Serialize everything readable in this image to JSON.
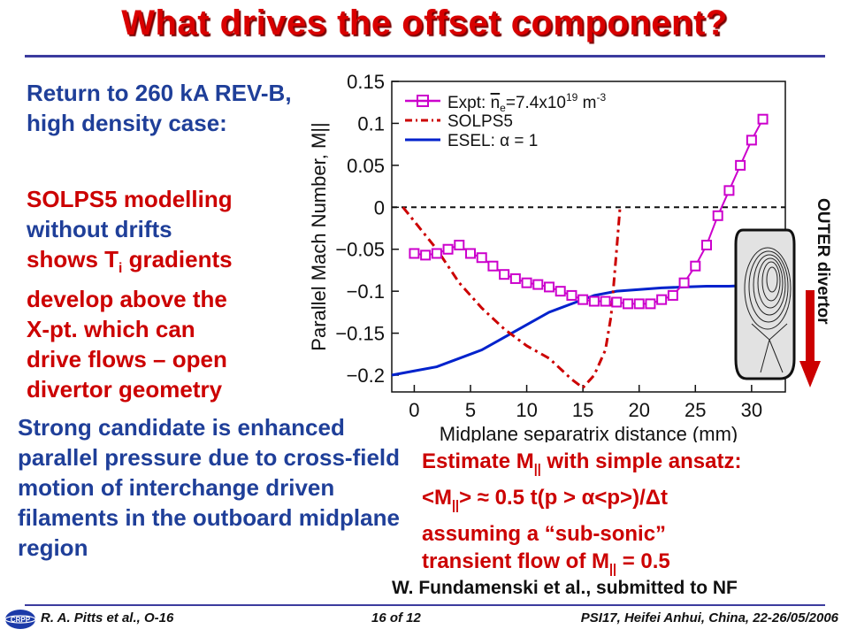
{
  "slide": {
    "title": "What drives the offset component?",
    "p1": "Return to 260 kA REV-B, high density case:",
    "p2": {
      "a": "SOLPS5 modelling",
      "b": "without drifts",
      "c_pre": "shows T",
      "c_sub": "i",
      "c_post": " gradients",
      "d": "develop above the",
      "e": "X-pt. which can",
      "f": "drive flows – open",
      "g": "divertor geometry"
    },
    "p3": "Strong candidate is enhanced parallel pressure due to cross-field motion of interchange driven filaments in the outboard midplane region",
    "ansatz": {
      "l1_pre": "Estimate M",
      "l1_sub": "||",
      "l1_post": " with simple ansatz:",
      "l2_a": "<M",
      "l2_sub": "||",
      "l2_b": "> ≈ 0.5 t(p > α<p>)/Δt",
      "l3": "assuming a “sub-sonic”",
      "l4_pre": "transient flow of  M",
      "l4_sub": "||",
      "l4_post": " = 0.5"
    },
    "reference": "W. Fundamenski et al., submitted to NF",
    "outer_divertor": "OUTER divertor",
    "footer": {
      "left": "R. A. Pitts et al., O-16",
      "center": "16 of 12",
      "right": "PSI17, Heifei Anhui, China, 22-26/05/2006"
    },
    "logo_text": "CRPP"
  },
  "colors": {
    "title": "#d90000",
    "blue_text": "#1f3f99",
    "red_text": "#cc0000",
    "expt": "#cc00cc",
    "solps": "#cc0000",
    "esel": "#0022cc"
  },
  "chart_data": {
    "type": "line",
    "xlabel": "Midplane separatrix distance (mm)",
    "ylabel": "Parallel Mach Number, M||",
    "xlim": [
      -2,
      33
    ],
    "ylim": [
      -0.22,
      0.15
    ],
    "xticks": [
      0,
      5,
      10,
      15,
      20,
      25,
      30
    ],
    "yticks": [
      0.15,
      0.1,
      0.05,
      0,
      -0.05,
      -0.1,
      -0.15,
      -0.2
    ],
    "ytick_labels": [
      "0.15",
      "0.1",
      "0.05",
      "0",
      "−0.05",
      "−0.1",
      "−0.15",
      "−0.2"
    ],
    "legend_position": "top-left",
    "zero_line": true,
    "series": [
      {
        "name": "Expt: n̄e=7.4x10^19 m^-3",
        "legend": {
          "pre": "Expt: ",
          "nbar": "n",
          "nsub": "e",
          "mid": "=7.4x10",
          "sup": "19",
          "post": " m",
          "sup2": "-3"
        },
        "style": "solid-square-markers",
        "x": [
          0,
          1,
          2,
          3,
          4,
          5,
          6,
          7,
          8,
          9,
          10,
          11,
          12,
          13,
          14,
          15,
          16,
          17,
          18,
          19,
          20,
          21,
          22,
          23,
          24,
          25,
          26,
          27,
          28,
          29,
          30,
          31
        ],
        "y": [
          -0.055,
          -0.057,
          -0.055,
          -0.05,
          -0.045,
          -0.055,
          -0.06,
          -0.07,
          -0.08,
          -0.085,
          -0.09,
          -0.092,
          -0.095,
          -0.1,
          -0.105,
          -0.11,
          -0.112,
          -0.112,
          -0.113,
          -0.115,
          -0.115,
          -0.115,
          -0.11,
          -0.105,
          -0.09,
          -0.07,
          -0.045,
          -0.01,
          0.02,
          0.05,
          0.08,
          0.105
        ]
      },
      {
        "name": "SOLPS5",
        "style": "dash-dot",
        "x": [
          -1,
          2,
          4,
          6,
          8,
          10,
          12,
          14,
          15,
          16,
          17,
          17.5,
          18,
          18.3
        ],
        "y": [
          0,
          -0.05,
          -0.09,
          -0.12,
          -0.145,
          -0.165,
          -0.18,
          -0.205,
          -0.215,
          -0.2,
          -0.17,
          -0.13,
          -0.05,
          0
        ]
      },
      {
        "name": "ESEL: α = 1",
        "style": "solid",
        "x": [
          -2,
          0,
          2,
          4,
          6,
          8,
          10,
          12,
          14,
          16,
          18,
          20,
          22,
          24,
          26,
          28,
          30,
          32
        ],
        "y": [
          -0.2,
          -0.195,
          -0.19,
          -0.18,
          -0.17,
          -0.155,
          -0.14,
          -0.125,
          -0.115,
          -0.105,
          -0.1,
          -0.098,
          -0.096,
          -0.095,
          -0.094,
          -0.094,
          -0.093,
          -0.09
        ]
      }
    ]
  }
}
